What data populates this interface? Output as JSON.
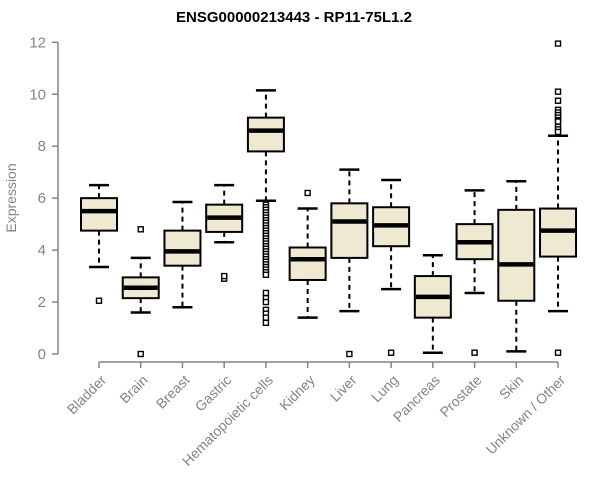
{
  "chart_data": {
    "type": "boxplot",
    "title": "ENSG00000213443 - RP11-75L1.2",
    "ylabel": "Expression",
    "ylim": [
      0,
      12
    ],
    "yticks": [
      0,
      2,
      4,
      6,
      8,
      10,
      12
    ],
    "grid": false,
    "legend": "none",
    "colors": {
      "box_fill": "#EFE9D2",
      "box_stroke": "#000000",
      "axis": "#848484",
      "title": "#000000",
      "background": "#ffffff"
    },
    "categories": [
      "Bladder",
      "Brain",
      "Breast",
      "Gastric",
      "Hematopoietic cells",
      "Kidney",
      "Liver",
      "Lung",
      "Pancreas",
      "Prostate",
      "Skin",
      "Unknown / Other"
    ],
    "series": [
      {
        "label": "Bladder",
        "whislo": 3.35,
        "q1": 4.75,
        "med": 5.5,
        "q3": 6.0,
        "whishi": 6.5,
        "outliers": [
          2.05
        ]
      },
      {
        "label": "Brain",
        "whislo": 1.6,
        "q1": 2.15,
        "med": 2.55,
        "q3": 2.95,
        "whishi": 3.7,
        "outliers": [
          4.8,
          0.0
        ]
      },
      {
        "label": "Breast",
        "whislo": 1.8,
        "q1": 3.4,
        "med": 3.95,
        "q3": 4.75,
        "whishi": 5.85,
        "outliers": []
      },
      {
        "label": "Gastric",
        "whislo": 4.3,
        "q1": 4.7,
        "med": 5.25,
        "q3": 5.75,
        "whishi": 6.5,
        "outliers": [
          2.9,
          3.0
        ]
      },
      {
        "label": "Hematopoietic cells",
        "whislo": 5.9,
        "q1": 7.8,
        "med": 8.6,
        "q3": 9.1,
        "whishi": 10.15,
        "outliers": [
          5.75,
          5.65,
          5.55,
          5.45,
          5.35,
          5.25,
          5.15,
          5.05,
          4.95,
          4.85,
          4.75,
          4.65,
          4.55,
          4.45,
          4.35,
          4.25,
          4.15,
          4.05,
          3.95,
          3.85,
          3.75,
          3.65,
          3.55,
          3.45,
          3.35,
          3.25,
          3.15,
          3.05,
          2.35,
          2.15,
          2.0,
          1.7,
          1.55,
          1.4,
          1.2
        ]
      },
      {
        "label": "Kidney",
        "whislo": 1.4,
        "q1": 2.85,
        "med": 3.65,
        "q3": 4.1,
        "whishi": 5.6,
        "outliers": [
          6.2
        ]
      },
      {
        "label": "Liver",
        "whislo": 1.65,
        "q1": 3.7,
        "med": 5.1,
        "q3": 5.8,
        "whishi": 7.1,
        "outliers": [
          0.0
        ]
      },
      {
        "label": "Lung",
        "whislo": 2.5,
        "q1": 4.15,
        "med": 4.95,
        "q3": 5.65,
        "whishi": 6.7,
        "outliers": [
          0.05
        ]
      },
      {
        "label": "Pancreas",
        "whislo": 0.05,
        "q1": 1.4,
        "med": 2.2,
        "q3": 3.0,
        "whishi": 3.8,
        "outliers": []
      },
      {
        "label": "Prostate",
        "whislo": 2.35,
        "q1": 3.65,
        "med": 4.3,
        "q3": 5.0,
        "whishi": 6.3,
        "outliers": [
          0.05
        ]
      },
      {
        "label": "Skin",
        "whislo": 0.1,
        "q1": 2.05,
        "med": 3.45,
        "q3": 5.55,
        "whishi": 6.65,
        "outliers": []
      },
      {
        "label": "Unknown / Other",
        "whislo": 1.65,
        "q1": 3.75,
        "med": 4.75,
        "q3": 5.6,
        "whishi": 8.4,
        "outliers": [
          11.95,
          10.1,
          9.75,
          9.4,
          9.3,
          9.2,
          9.1,
          9.0,
          8.95,
          8.75,
          8.65,
          8.55,
          0.05
        ]
      }
    ]
  }
}
